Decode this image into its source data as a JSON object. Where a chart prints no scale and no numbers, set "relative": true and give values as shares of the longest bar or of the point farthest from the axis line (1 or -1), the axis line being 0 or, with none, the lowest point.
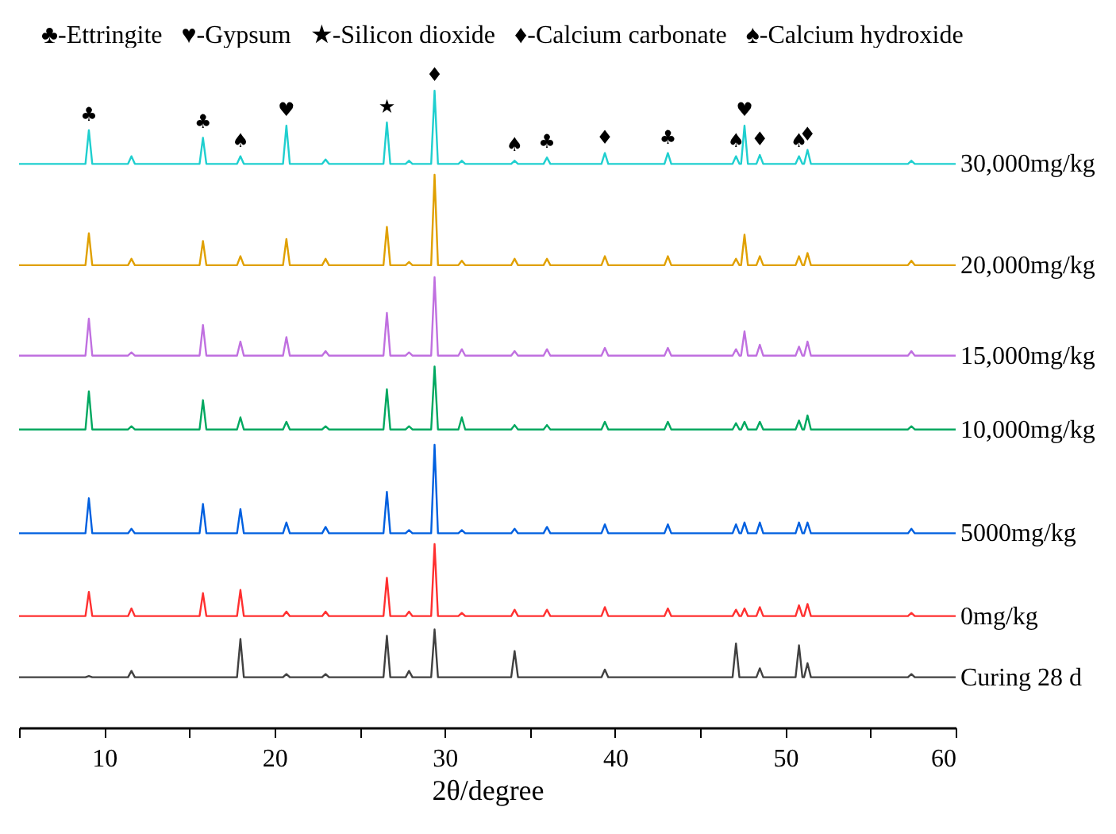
{
  "chart_data": {
    "type": "line",
    "relative": true,
    "xlabel": "2θ/degree",
    "xlim": [
      5,
      60
    ],
    "xticks": [
      {
        "value": 5,
        "label": null
      },
      10,
      {
        "value": 15,
        "label": null
      },
      20,
      {
        "value": 25,
        "label": null
      },
      30,
      {
        "value": 35,
        "label": null
      },
      40,
      {
        "value": 45,
        "label": null
      },
      50,
      {
        "value": 55,
        "label": null
      },
      60
    ],
    "x": [
      5,
      8.9,
      9.1,
      9.3,
      11.4,
      11.6,
      11.8,
      15.6,
      15.8,
      16.0,
      17.8,
      18.0,
      18.2,
      20.5,
      20.7,
      20.9,
      22.8,
      23.0,
      23.2,
      26.4,
      26.6,
      26.8,
      27.7,
      27.9,
      28.1,
      29.2,
      29.4,
      29.6,
      30.8,
      31.0,
      31.2,
      33.9,
      34.1,
      34.3,
      35.8,
      36.0,
      36.2,
      39.2,
      39.4,
      39.6,
      42.9,
      43.1,
      43.3,
      46.9,
      47.1,
      47.3,
      47.4,
      47.6,
      47.8,
      48.3,
      48.5,
      48.7,
      50.6,
      50.8,
      51.0,
      51.1,
      51.3,
      51.5,
      57.2,
      57.4,
      57.6,
      60
    ],
    "series": [
      {
        "name": "30,000mg/kg",
        "color": "#1fcfcf",
        "values": [
          0.885,
          0.885,
          0.938,
          0.885,
          0.885,
          0.897,
          0.885,
          0.885,
          0.926,
          0.885,
          0.885,
          0.897,
          0.885,
          0.885,
          0.945,
          0.885,
          0.885,
          0.892,
          0.885,
          0.885,
          0.95,
          0.885,
          0.885,
          0.89,
          0.885,
          0.885,
          1.0,
          0.885,
          0.885,
          0.89,
          0.885,
          0.885,
          0.89,
          0.885,
          0.885,
          0.895,
          0.885,
          0.885,
          0.902,
          0.885,
          0.885,
          0.902,
          0.885,
          0.885,
          0.897,
          0.885,
          0.885,
          0.945,
          0.885,
          0.885,
          0.899,
          0.885,
          0.885,
          0.897,
          0.885,
          0.885,
          0.907,
          0.885,
          0.885,
          0.89,
          0.885,
          0.885
        ]
      },
      {
        "name": "20,000mg/kg",
        "color": "#e0a000",
        "values": [
          0.726,
          0.726,
          0.776,
          0.726,
          0.726,
          0.736,
          0.726,
          0.726,
          0.764,
          0.726,
          0.726,
          0.74,
          0.726,
          0.726,
          0.767,
          0.726,
          0.726,
          0.736,
          0.726,
          0.726,
          0.786,
          0.726,
          0.726,
          0.731,
          0.726,
          0.726,
          0.868,
          0.726,
          0.726,
          0.733,
          0.726,
          0.726,
          0.736,
          0.726,
          0.726,
          0.736,
          0.726,
          0.726,
          0.74,
          0.726,
          0.726,
          0.74,
          0.726,
          0.726,
          0.736,
          0.726,
          0.726,
          0.774,
          0.726,
          0.726,
          0.74,
          0.726,
          0.726,
          0.74,
          0.726,
          0.726,
          0.745,
          0.726,
          0.726,
          0.733,
          0.726,
          0.726
        ]
      },
      {
        "name": "15,000mg/kg",
        "color": "#c070e0",
        "values": [
          0.584,
          0.584,
          0.642,
          0.584,
          0.584,
          0.589,
          0.584,
          0.584,
          0.632,
          0.584,
          0.584,
          0.606,
          0.584,
          0.584,
          0.613,
          0.584,
          0.584,
          0.591,
          0.584,
          0.584,
          0.651,
          0.584,
          0.584,
          0.589,
          0.584,
          0.584,
          0.707,
          0.584,
          0.584,
          0.594,
          0.584,
          0.584,
          0.591,
          0.584,
          0.584,
          0.594,
          0.584,
          0.584,
          0.596,
          0.584,
          0.584,
          0.596,
          0.584,
          0.584,
          0.594,
          0.584,
          0.584,
          0.622,
          0.584,
          0.584,
          0.601,
          0.584,
          0.584,
          0.598,
          0.584,
          0.584,
          0.606,
          0.584,
          0.584,
          0.591,
          0.584,
          0.584
        ]
      },
      {
        "name": "10,000mg/kg",
        "color": "#00a860",
        "values": [
          0.468,
          0.468,
          0.528,
          0.468,
          0.468,
          0.473,
          0.468,
          0.468,
          0.514,
          0.468,
          0.468,
          0.487,
          0.468,
          0.468,
          0.48,
          0.468,
          0.468,
          0.473,
          0.468,
          0.468,
          0.531,
          0.468,
          0.468,
          0.473,
          0.468,
          0.468,
          0.567,
          0.468,
          0.468,
          0.487,
          0.468,
          0.468,
          0.475,
          0.468,
          0.468,
          0.475,
          0.468,
          0.468,
          0.48,
          0.468,
          0.468,
          0.48,
          0.468,
          0.468,
          0.478,
          0.468,
          0.468,
          0.48,
          0.468,
          0.468,
          0.48,
          0.468,
          0.468,
          0.482,
          0.468,
          0.468,
          0.49,
          0.468,
          0.468,
          0.473,
          0.468,
          0.468
        ]
      },
      {
        "name": "5000mg/kg",
        "color": "#0060e0",
        "values": [
          0.305,
          0.305,
          0.36,
          0.305,
          0.305,
          0.312,
          0.305,
          0.305,
          0.351,
          0.305,
          0.305,
          0.343,
          0.305,
          0.305,
          0.322,
          0.305,
          0.305,
          0.315,
          0.305,
          0.305,
          0.37,
          0.305,
          0.305,
          0.31,
          0.305,
          0.305,
          0.444,
          0.305,
          0.305,
          0.31,
          0.305,
          0.305,
          0.312,
          0.305,
          0.305,
          0.315,
          0.305,
          0.305,
          0.319,
          0.305,
          0.305,
          0.319,
          0.305,
          0.305,
          0.319,
          0.305,
          0.305,
          0.322,
          0.305,
          0.305,
          0.322,
          0.305,
          0.305,
          0.322,
          0.305,
          0.305,
          0.322,
          0.305,
          0.305,
          0.312,
          0.305,
          0.305
        ]
      },
      {
        "name": "0mg/kg",
        "color": "#ff3030",
        "values": [
          0.175,
          0.175,
          0.213,
          0.175,
          0.175,
          0.187,
          0.175,
          0.175,
          0.211,
          0.175,
          0.175,
          0.216,
          0.175,
          0.175,
          0.182,
          0.175,
          0.175,
          0.182,
          0.175,
          0.175,
          0.235,
          0.175,
          0.175,
          0.182,
          0.175,
          0.175,
          0.288,
          0.175,
          0.175,
          0.18,
          0.175,
          0.175,
          0.185,
          0.175,
          0.175,
          0.185,
          0.175,
          0.175,
          0.189,
          0.175,
          0.175,
          0.187,
          0.175,
          0.175,
          0.185,
          0.175,
          0.175,
          0.187,
          0.175,
          0.175,
          0.189,
          0.175,
          0.175,
          0.192,
          0.175,
          0.175,
          0.194,
          0.175,
          0.175,
          0.18,
          0.175,
          0.175
        ]
      },
      {
        "name": "Curing 28 d",
        "color": "#404040",
        "values": [
          0.079,
          0.079,
          0.081,
          0.079,
          0.079,
          0.089,
          0.079,
          0.079,
          0.079,
          0.079,
          0.079,
          0.139,
          0.079,
          0.079,
          0.084,
          0.079,
          0.079,
          0.084,
          0.079,
          0.079,
          0.144,
          0.079,
          0.079,
          0.089,
          0.079,
          0.079,
          0.154,
          0.079,
          0.079,
          0.079,
          0.079,
          0.079,
          0.12,
          0.079,
          0.079,
          0.079,
          0.079,
          0.079,
          0.091,
          0.079,
          0.079,
          0.079,
          0.079,
          0.079,
          0.132,
          0.079,
          0.079,
          0.079,
          0.079,
          0.079,
          0.093,
          0.079,
          0.079,
          0.129,
          0.079,
          0.079,
          0.101,
          0.079,
          0.079,
          0.084,
          0.079,
          0.079
        ]
      }
    ],
    "annotations": [
      "♣-Ettringite",
      "♥-Gypsum",
      "★-Silicon dioxide",
      "♦-Calcium carbonate",
      "♠-Calcium hydroxide",
      {
        "text": "♣",
        "x": 9.1,
        "y": 0.938
      },
      {
        "text": "♣",
        "x": 15.8,
        "y": 0.926
      },
      {
        "text": "♠",
        "x": 18.0,
        "y": 0.897
      },
      {
        "text": "♥",
        "x": 20.7,
        "y": 0.945
      },
      {
        "text": "★",
        "x": 26.6,
        "y": 0.95
      },
      {
        "text": "♦",
        "x": 29.4,
        "y": 1.0
      },
      {
        "text": "♠",
        "x": 34.1,
        "y": 0.89
      },
      {
        "text": "♣",
        "x": 36.0,
        "y": 0.895
      },
      {
        "text": "♦",
        "x": 39.4,
        "y": 0.902
      },
      {
        "text": "♣",
        "x": 43.1,
        "y": 0.902
      },
      {
        "text": "♠",
        "x": 47.1,
        "y": 0.897
      },
      {
        "text": "♥",
        "x": 47.6,
        "y": 0.945
      },
      {
        "text": "♦",
        "x": 48.5,
        "y": 0.899
      },
      {
        "text": "♠",
        "x": 50.8,
        "y": 0.897
      },
      {
        "text": "♦",
        "x": 51.3,
        "y": 0.907
      }
    ]
  }
}
